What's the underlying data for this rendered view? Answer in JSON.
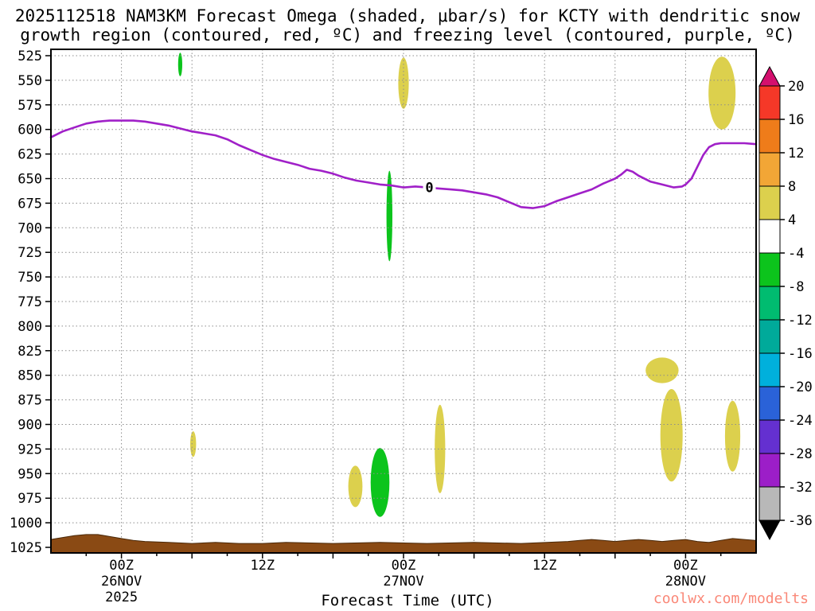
{
  "page": {
    "watermark": "coolwx.com/modelts",
    "background_color": "#ffffff"
  },
  "chart_data": {
    "type": "heatmap",
    "subtype": "time-height pressure cross-section with contour line",
    "title_line1": "2025112518 NAM3KM Forecast Omega (shaded, μbar/s) for KCTY with dendritic snow",
    "title_line2": "growth region (contoured, red, ºC) and freezing level (contoured, purple, ºC)",
    "xlabel": "Forecast Time (UTC)",
    "ylabel": "",
    "grid": "dotted",
    "colors": {
      "yellow": "#dcd04d",
      "green": "#0cc41c"
    },
    "x_axis": {
      "range_forecast_hours": [
        0,
        60
      ],
      "major_ticks": [
        {
          "hour": 6,
          "label": "00Z",
          "date": "26NOV",
          "year": "2025"
        },
        {
          "hour": 18,
          "label": "12Z"
        },
        {
          "hour": 30,
          "label": "00Z",
          "date": "27NOV"
        },
        {
          "hour": 42,
          "label": "12Z"
        },
        {
          "hour": 54,
          "label": "00Z",
          "date": "28NOV"
        }
      ],
      "grid_hours": [
        6,
        12,
        18,
        24,
        30,
        36,
        42,
        48,
        54
      ]
    },
    "y_axis": {
      "quantity": "pressure_hpa",
      "min": 525,
      "max": 1025,
      "inverted": true,
      "ticks": [
        525,
        550,
        575,
        600,
        625,
        650,
        675,
        700,
        725,
        750,
        775,
        800,
        825,
        850,
        875,
        900,
        925,
        950,
        975,
        1000,
        1025
      ]
    },
    "colorbar": {
      "unit": "μbar/s",
      "tick_labels": [
        "20",
        "16",
        "12",
        "8",
        "4",
        "-4",
        "-8",
        "-12",
        "-16",
        "-20",
        "-24",
        "-28",
        "-32",
        "-36"
      ],
      "segments": [
        {
          "range": "> 20",
          "color": "#d4106e",
          "shape": "arrow-up"
        },
        {
          "range": "16 to 20",
          "color": "#f53828"
        },
        {
          "range": "12 to 16",
          "color": "#ef7c1a"
        },
        {
          "range": "8 to 12",
          "color": "#f2a636"
        },
        {
          "range": "4 to 8",
          "color": "#dcd04d"
        },
        {
          "range": "-4 to 4",
          "color": "#ffffff"
        },
        {
          "range": "-8 to -4",
          "color": "#0cc41c"
        },
        {
          "range": "-12 to -8",
          "color": "#00bc70"
        },
        {
          "range": "-16 to -12",
          "color": "#00aa9a"
        },
        {
          "range": "-20 to -16",
          "color": "#00b0dc"
        },
        {
          "range": "-24 to -20",
          "color": "#2a62d8"
        },
        {
          "range": "-28 to -24",
          "color": "#6430d0"
        },
        {
          "range": "-32 to -28",
          "color": "#9c1ec8"
        },
        {
          "range": "-36 to -32",
          "color": "#b8b8b8"
        },
        {
          "range": "< -36",
          "color": "#000000",
          "shape": "arrow-down"
        }
      ]
    },
    "freezing_level_contour": {
      "label": "0",
      "unit": "ºC",
      "color": "#a020c8",
      "label_at": {
        "hour": 32.2,
        "pressure": 659
      },
      "points": [
        [
          0,
          608
        ],
        [
          1,
          602
        ],
        [
          2,
          598
        ],
        [
          3,
          594
        ],
        [
          4,
          592
        ],
        [
          5,
          591
        ],
        [
          6,
          591
        ],
        [
          7,
          591
        ],
        [
          8,
          592
        ],
        [
          9,
          594
        ],
        [
          10,
          596
        ],
        [
          11,
          599
        ],
        [
          12,
          602
        ],
        [
          13,
          604
        ],
        [
          14,
          606
        ],
        [
          15,
          610
        ],
        [
          16,
          616
        ],
        [
          17,
          621
        ],
        [
          18,
          626
        ],
        [
          19,
          630
        ],
        [
          20,
          633
        ],
        [
          21,
          636
        ],
        [
          22,
          640
        ],
        [
          23,
          642
        ],
        [
          24,
          645
        ],
        [
          25,
          649
        ],
        [
          26,
          652
        ],
        [
          27,
          654
        ],
        [
          28,
          656
        ],
        [
          29,
          657
        ],
        [
          30,
          659
        ],
        [
          31,
          658
        ],
        [
          32,
          659
        ],
        [
          33,
          660
        ],
        [
          34,
          661
        ],
        [
          35,
          662
        ],
        [
          36,
          664
        ],
        [
          37,
          666
        ],
        [
          38,
          669
        ],
        [
          39,
          674
        ],
        [
          40,
          679
        ],
        [
          41,
          680
        ],
        [
          42,
          678
        ],
        [
          43,
          673
        ],
        [
          44,
          669
        ],
        [
          45,
          665
        ],
        [
          46,
          661
        ],
        [
          47,
          655
        ],
        [
          48,
          650
        ],
        [
          48.5,
          646
        ],
        [
          49,
          641
        ],
        [
          49.5,
          643
        ],
        [
          50,
          647
        ],
        [
          51,
          653
        ],
        [
          52,
          656
        ],
        [
          53,
          659
        ],
        [
          53.7,
          658
        ],
        [
          54,
          656
        ],
        [
          54.5,
          650
        ],
        [
          55,
          638
        ],
        [
          55.5,
          626
        ],
        [
          56,
          618
        ],
        [
          56.5,
          615
        ],
        [
          57,
          614
        ],
        [
          58,
          614
        ],
        [
          59,
          614
        ],
        [
          60,
          615
        ]
      ]
    },
    "omega_shaded_regions": [
      {
        "color": "green",
        "value_range": "-8 to -4",
        "hour": 11.0,
        "pressure": 534,
        "width_hours": 0.35,
        "depth_hpa": 24
      },
      {
        "color": "yellow",
        "value_range": "4 to 8",
        "hour": 30.0,
        "pressure": 553,
        "width_hours": 0.9,
        "depth_hpa": 52
      },
      {
        "color": "yellow",
        "value_range": "4 to 8",
        "hour": 57.1,
        "pressure": 563,
        "width_hours": 2.3,
        "depth_hpa": 74
      },
      {
        "color": "green",
        "value_range": "-8 to -4",
        "hour": 28.8,
        "pressure": 688,
        "width_hours": 0.5,
        "depth_hpa": 92
      },
      {
        "color": "yellow",
        "value_range": "4 to 8",
        "hour": 12.1,
        "pressure": 920,
        "width_hours": 0.5,
        "depth_hpa": 26
      },
      {
        "color": "yellow",
        "value_range": "4 to 8",
        "hour": 25.9,
        "pressure": 963,
        "width_hours": 1.2,
        "depth_hpa": 42
      },
      {
        "color": "green",
        "value_range": "-8 to -4",
        "hour": 28.0,
        "pressure": 959,
        "width_hours": 1.6,
        "depth_hpa": 70
      },
      {
        "color": "yellow",
        "value_range": "4 to 8",
        "hour": 33.1,
        "pressure": 925,
        "width_hours": 0.9,
        "depth_hpa": 90
      },
      {
        "color": "yellow",
        "value_range": "4 to 8",
        "hour": 52.0,
        "pressure": 845,
        "width_hours": 2.8,
        "depth_hpa": 26
      },
      {
        "color": "yellow",
        "value_range": "4 to 8",
        "hour": 52.8,
        "pressure": 911,
        "width_hours": 1.9,
        "depth_hpa": 94
      },
      {
        "color": "yellow",
        "value_range": "4 to 8",
        "hour": 58.0,
        "pressure": 912,
        "width_hours": 1.3,
        "depth_hpa": 72
      }
    ],
    "terrain": {
      "color": "#8a4a14",
      "surface_points": [
        [
          0,
          1017
        ],
        [
          1,
          1015
        ],
        [
          2,
          1013
        ],
        [
          3,
          1012
        ],
        [
          4,
          1012
        ],
        [
          5,
          1014
        ],
        [
          6,
          1016
        ],
        [
          7,
          1018
        ],
        [
          8,
          1019
        ],
        [
          10,
          1020
        ],
        [
          12,
          1021
        ],
        [
          14,
          1020
        ],
        [
          16,
          1021
        ],
        [
          18,
          1021
        ],
        [
          20,
          1020
        ],
        [
          24,
          1021
        ],
        [
          28,
          1020
        ],
        [
          32,
          1021
        ],
        [
          36,
          1020
        ],
        [
          40,
          1021
        ],
        [
          44,
          1019
        ],
        [
          45,
          1018
        ],
        [
          46,
          1017
        ],
        [
          47,
          1018
        ],
        [
          48,
          1019
        ],
        [
          49,
          1018
        ],
        [
          50,
          1017
        ],
        [
          51,
          1018
        ],
        [
          52,
          1019
        ],
        [
          53,
          1018
        ],
        [
          54,
          1017
        ],
        [
          55,
          1019
        ],
        [
          56,
          1020
        ],
        [
          57,
          1018
        ],
        [
          58,
          1016
        ],
        [
          59,
          1017
        ],
        [
          60,
          1018
        ]
      ]
    },
    "notes": "No red dendritic snow growth region contours appear within the displayed window."
  }
}
